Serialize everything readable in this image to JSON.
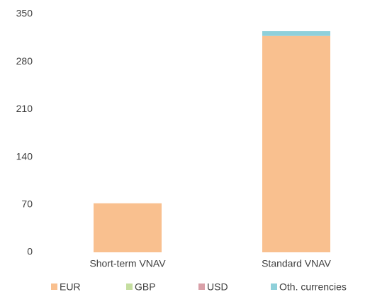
{
  "chart_data": {
    "type": "bar",
    "stacked": true,
    "categories": [
      "Short-term VNAV",
      "Standard VNAV"
    ],
    "series": [
      {
        "name": "EUR",
        "color": "#f9c08f",
        "values": [
          72,
          318
        ]
      },
      {
        "name": "GBP",
        "color": "#c5dea0",
        "values": [
          0,
          0
        ]
      },
      {
        "name": "USD",
        "color": "#d9a0a8",
        "values": [
          0,
          0
        ]
      },
      {
        "name": "Oth. currencies",
        "color": "#8fd0da",
        "values": [
          0,
          7
        ]
      }
    ],
    "ylim": [
      0,
      350
    ],
    "yticks": [
      0,
      70,
      140,
      210,
      280,
      350
    ],
    "grid": false,
    "legend": "bottom"
  }
}
